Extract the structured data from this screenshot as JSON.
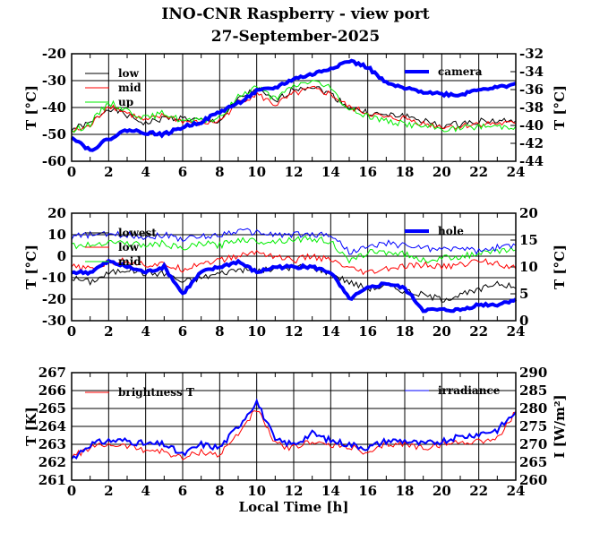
{
  "title": "INO-CNR Raspberry - view port",
  "subtitle": "27-September-2025",
  "chart_data": [
    {
      "type": "line",
      "ylabel": "T [°C]",
      "y2label": "T [°C]",
      "xlabel": "",
      "xlim": [
        0,
        24
      ],
      "ylim": [
        -60,
        -20
      ],
      "y2lim": [
        -44,
        -32
      ],
      "xticks": [
        0,
        2,
        4,
        6,
        8,
        10,
        12,
        14,
        16,
        18,
        20,
        22,
        24
      ],
      "yticks": [
        -60,
        -50,
        -40,
        -30,
        -20
      ],
      "y2ticks": [
        -44,
        -42,
        -40,
        -38,
        -36,
        -34,
        -32
      ],
      "grid": true,
      "x": [
        0,
        1,
        2,
        3,
        4,
        5,
        6,
        7,
        8,
        9,
        10,
        11,
        12,
        13,
        14,
        15,
        16,
        17,
        18,
        19,
        20,
        21,
        22,
        23,
        24
      ],
      "series": [
        {
          "name": "low",
          "axis": "left",
          "color": "#000000",
          "width": 1,
          "values": [
            -48,
            -46,
            -40,
            -43,
            -46,
            -44,
            -44,
            -45,
            -45,
            -37,
            -33,
            -38,
            -33,
            -32,
            -35,
            -40,
            -42,
            -43,
            -43,
            -45,
            -47,
            -46,
            -45,
            -45,
            -45
          ]
        },
        {
          "name": "mid",
          "axis": "left",
          "color": "#ff0000",
          "width": 1,
          "values": [
            -49,
            -47,
            -39,
            -42,
            -45,
            -43,
            -45,
            -46,
            -45,
            -38,
            -35,
            -39,
            -35,
            -33,
            -35,
            -40,
            -42,
            -44,
            -44,
            -46,
            -47,
            -47,
            -46,
            -46,
            -46
          ]
        },
        {
          "name": "up",
          "axis": "left",
          "color": "#00ee00",
          "width": 1,
          "values": [
            -49,
            -46,
            -38,
            -41,
            -44,
            -42,
            -45,
            -45,
            -44,
            -36,
            -32,
            -37,
            -32,
            -30,
            -33,
            -41,
            -43,
            -45,
            -46,
            -47,
            -48,
            -48,
            -47,
            -47,
            -47
          ]
        },
        {
          "name": "camera",
          "axis": "right",
          "color": "#0000ff",
          "width": 4,
          "values": [
            -41.2,
            -42.8,
            -41.5,
            -40.5,
            -40.8,
            -41,
            -40.2,
            -39.6,
            -38.5,
            -37.5,
            -36.2,
            -35.8,
            -34.8,
            -34.3,
            -33.6,
            -32.8,
            -33.5,
            -35.3,
            -35.9,
            -36.2,
            -36.5,
            -36.6,
            -35.9,
            -35.8,
            -35.3
          ]
        }
      ]
    },
    {
      "type": "line",
      "ylabel": "T [°C]",
      "y2label": "T [°C]",
      "xlabel": "",
      "xlim": [
        0,
        24
      ],
      "ylim": [
        -30,
        20
      ],
      "y2lim": [
        0,
        20
      ],
      "xticks": [
        0,
        2,
        4,
        6,
        8,
        10,
        12,
        14,
        16,
        18,
        20,
        22,
        24
      ],
      "yticks": [
        -30,
        -20,
        -10,
        0,
        10,
        20
      ],
      "y2ticks": [
        0,
        5,
        10,
        15,
        20
      ],
      "grid": true,
      "x": [
        0,
        1,
        2,
        3,
        4,
        5,
        6,
        7,
        8,
        9,
        10,
        11,
        12,
        13,
        14,
        15,
        16,
        17,
        18,
        19,
        20,
        21,
        22,
        23,
        24
      ],
      "series": [
        {
          "name": "lowest",
          "axis": "left",
          "color": "#000000",
          "width": 1,
          "values": [
            -10,
            -12,
            -8,
            -6,
            -8,
            -8,
            -12,
            -10,
            -8,
            -6,
            -7,
            -6,
            -5,
            -5,
            -8,
            -12,
            -15,
            -14,
            -16,
            -18,
            -20,
            -18,
            -16,
            -12,
            -15
          ]
        },
        {
          "name": "low",
          "axis": "left",
          "color": "#ff0000",
          "width": 1,
          "values": [
            -5,
            -6,
            -3,
            -2,
            -4,
            -4,
            -6,
            -3,
            -2,
            0,
            2,
            0,
            -2,
            0,
            -2,
            -6,
            -8,
            -6,
            -5,
            -4,
            -5,
            -4,
            -2,
            -3,
            -6
          ]
        },
        {
          "name": "mid",
          "axis": "left",
          "color": "#00ee00",
          "width": 1,
          "values": [
            5,
            5,
            7,
            6,
            5,
            6,
            3,
            6,
            5,
            8,
            7,
            7,
            8,
            8,
            7,
            -3,
            2,
            2,
            1,
            -2,
            -1,
            0,
            1,
            2,
            3
          ]
        },
        {
          "name": "",
          "axis": "left",
          "color": "#0000ff",
          "width": 1,
          "values": [
            9,
            10,
            10,
            10,
            9,
            10,
            8,
            9,
            10,
            12,
            11,
            10,
            10,
            10,
            10,
            2,
            4,
            6,
            5,
            4,
            3,
            4,
            2,
            4,
            5
          ]
        },
        {
          "name": "hole",
          "axis": "right",
          "color": "#0000ff",
          "width": 4,
          "values": [
            9,
            9,
            11,
            10,
            9,
            10,
            5,
            9,
            10,
            11,
            9,
            10,
            10,
            10,
            9,
            4,
            6,
            7,
            6,
            2,
            2,
            2,
            3,
            3,
            4
          ]
        }
      ]
    },
    {
      "type": "line",
      "ylabel": "T [K]",
      "y2label": "I [W/m²]",
      "xlabel": "Local Time [h]",
      "xlim": [
        0,
        24
      ],
      "ylim": [
        261,
        267
      ],
      "y2lim": [
        260,
        290
      ],
      "xticks": [
        0,
        2,
        4,
        6,
        8,
        10,
        12,
        14,
        16,
        18,
        20,
        22,
        24
      ],
      "yticks": [
        261,
        262,
        263,
        264,
        265,
        266,
        267
      ],
      "y2ticks": [
        260,
        265,
        270,
        275,
        280,
        285,
        290
      ],
      "grid": true,
      "x": [
        0,
        1,
        2,
        3,
        4,
        5,
        6,
        7,
        8,
        9,
        10,
        11,
        12,
        13,
        14,
        15,
        16,
        17,
        18,
        19,
        20,
        21,
        22,
        23,
        24
      ],
      "series": [
        {
          "name": "brightness T",
          "axis": "left",
          "color": "#ff0000",
          "width": 1,
          "values": [
            262.3,
            262.8,
            263,
            262.9,
            262.7,
            262.6,
            262.2,
            262.6,
            262.4,
            263.6,
            265,
            263,
            262.8,
            263.2,
            262.9,
            262.9,
            262.4,
            263,
            263,
            262.8,
            263,
            263.1,
            263.2,
            263.3,
            264.8
          ]
        },
        {
          "name": "irradiance",
          "axis": "right",
          "color": "#0000ff",
          "width": 2,
          "values": [
            266,
            270,
            271,
            271,
            270,
            270,
            267,
            270,
            269,
            275,
            282,
            271,
            270,
            273,
            271,
            270,
            269,
            271,
            271,
            270,
            271,
            272,
            273,
            274,
            279
          ]
        }
      ]
    }
  ]
}
